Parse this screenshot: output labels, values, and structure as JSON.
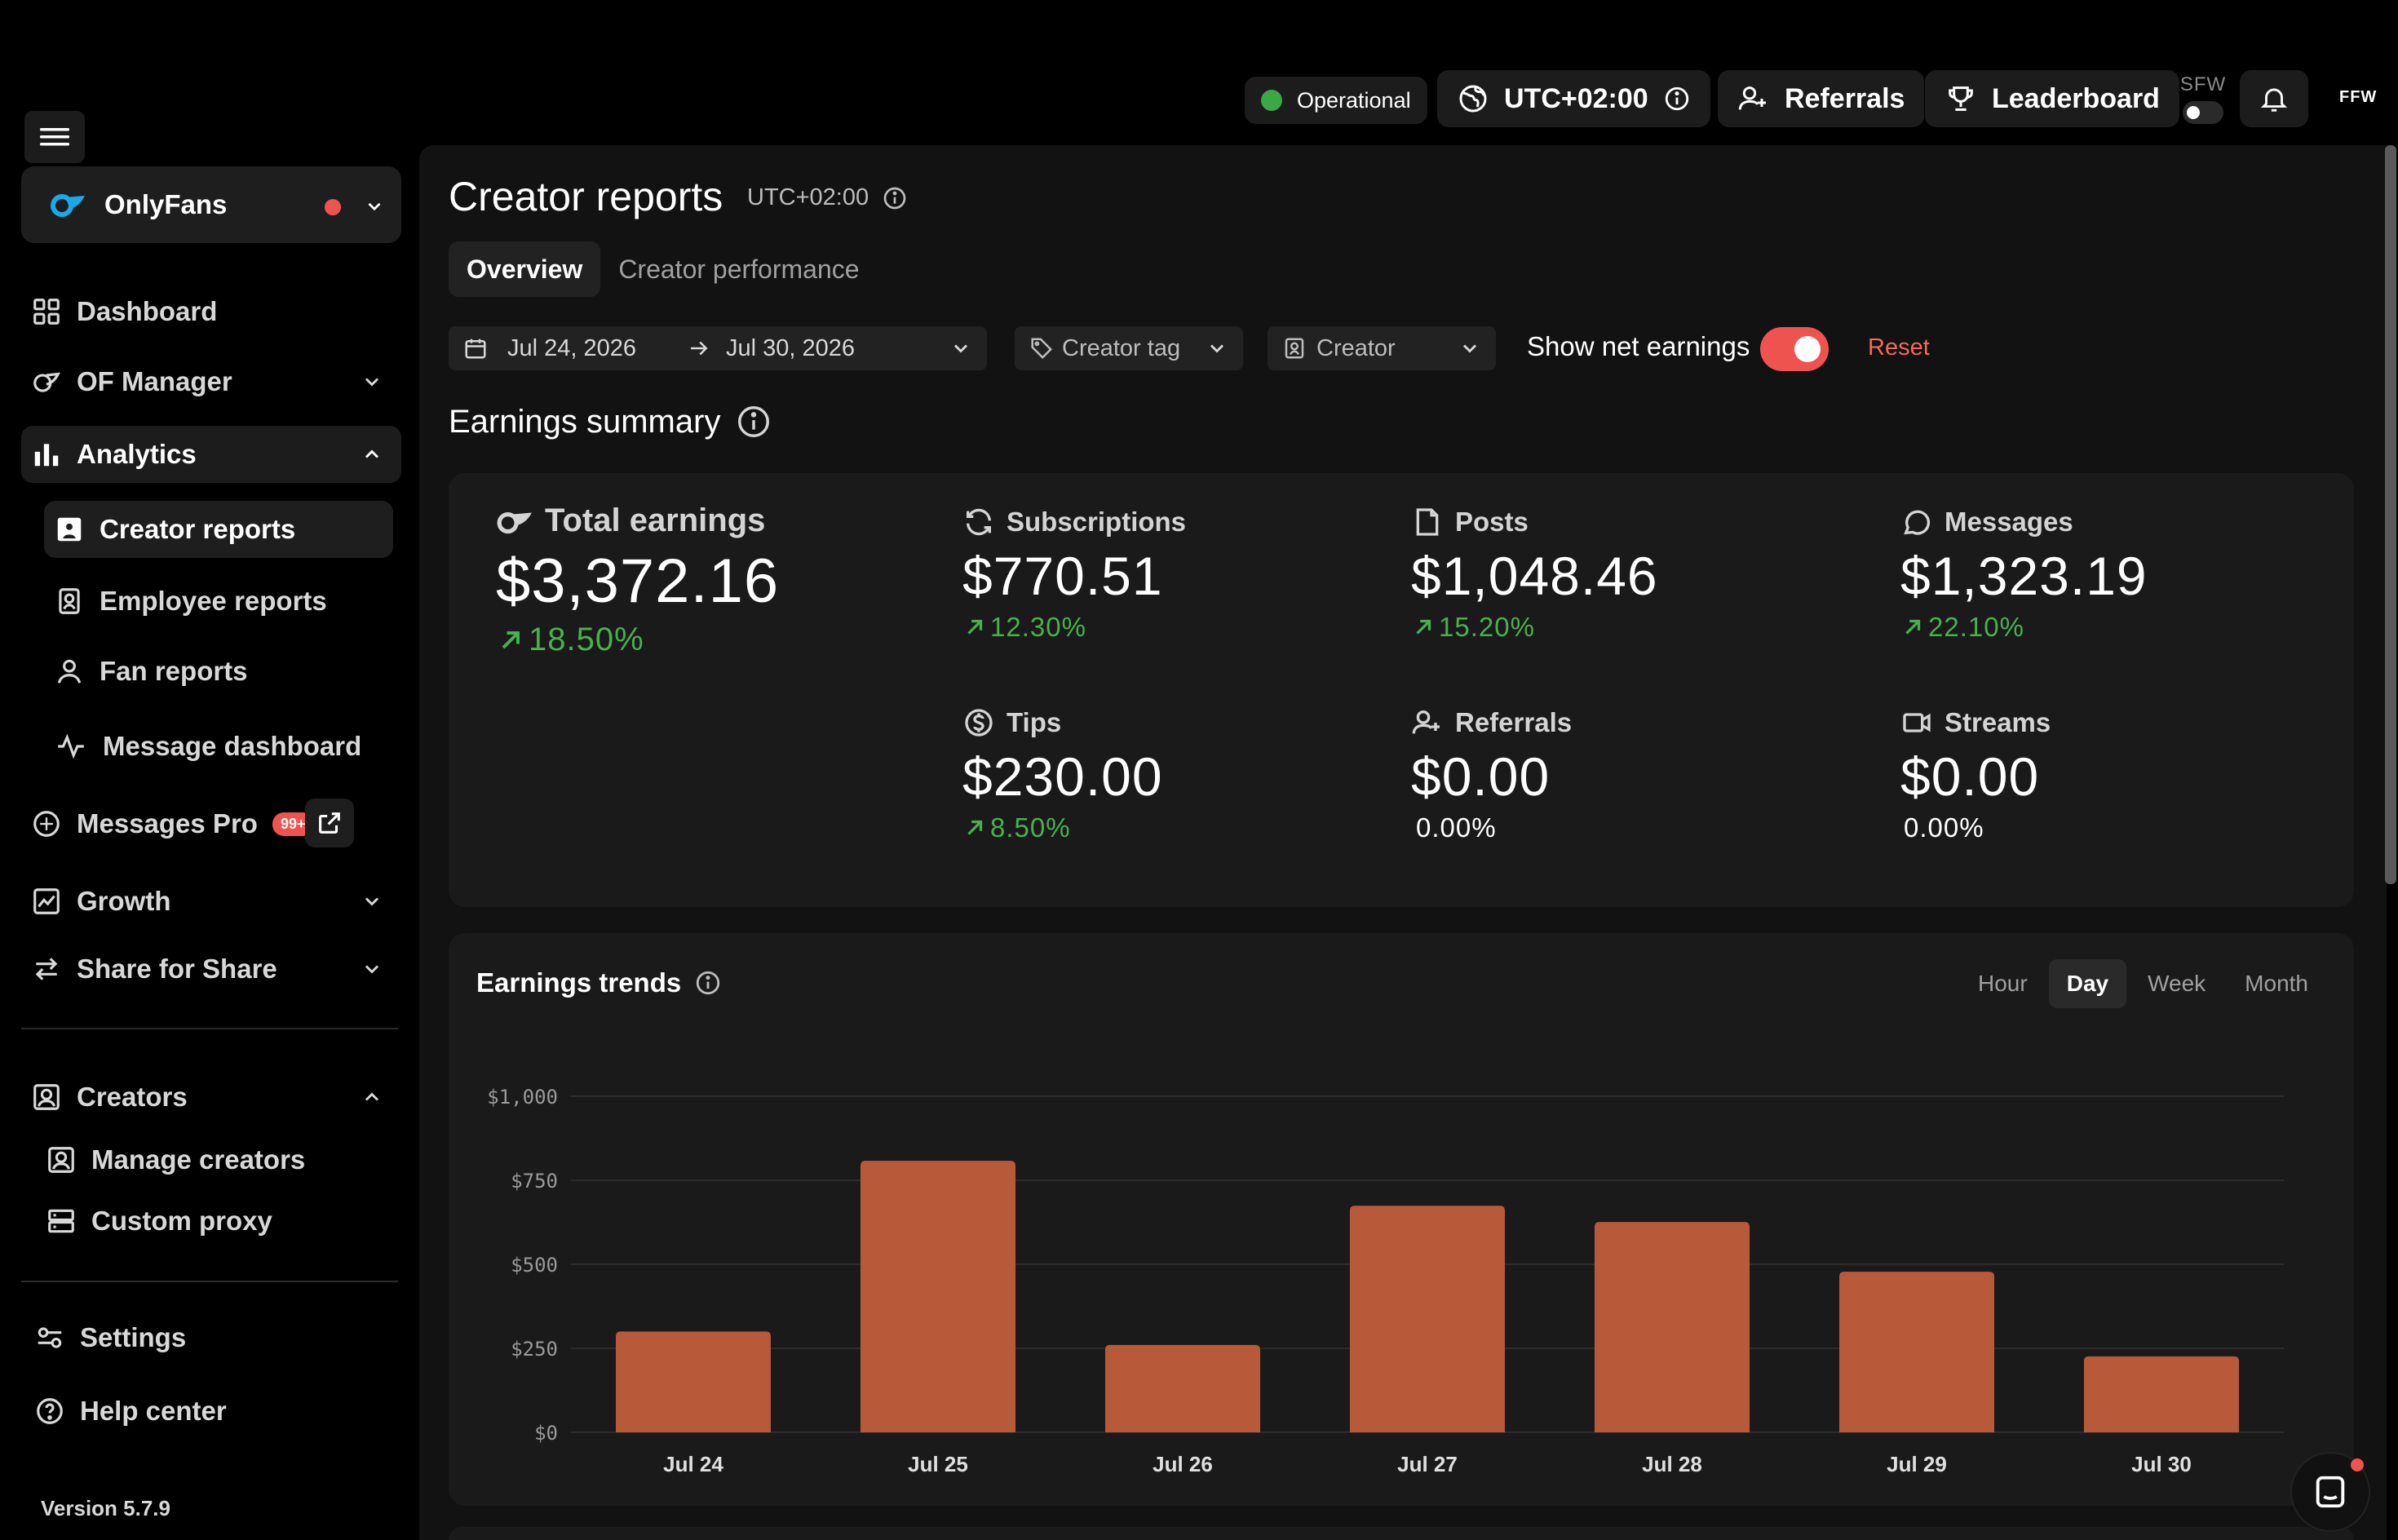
{
  "topbar": {
    "status": "Operational",
    "timezone": "UTC+02:00",
    "referrals": "Referrals",
    "leaderboard": "Leaderboard",
    "sfw": "SFW",
    "ffw": "FFW"
  },
  "sidebar": {
    "account": "OnlyFans",
    "items": {
      "dashboard": "Dashboard",
      "of_manager": "OF Manager",
      "analytics": "Analytics",
      "creator_reports": "Creator reports",
      "employee_reports": "Employee reports",
      "fan_reports": "Fan reports",
      "message_dashboard": "Message dashboard",
      "messages_pro": "Messages Pro",
      "messages_badge": "99+",
      "growth": "Growth",
      "share_for_share": "Share for Share",
      "creators": "Creators",
      "manage_creators": "Manage creators",
      "custom_proxy": "Custom proxy",
      "settings": "Settings",
      "help_center": "Help center"
    },
    "version": "Version 5.7.9"
  },
  "page": {
    "title": "Creator reports",
    "timezone": "UTC+02:00",
    "tabs": [
      "Overview",
      "Creator performance"
    ],
    "filters": {
      "date_from": "Jul 24, 2026",
      "date_to": "Jul 30, 2026",
      "creator_tag": "Creator tag",
      "creator": "Creator",
      "net_label": "Show net earnings",
      "net_enabled": true,
      "reset": "Reset"
    },
    "summary_title": "Earnings summary",
    "stats": {
      "total": {
        "label": "Total earnings",
        "value": "$3,372.16",
        "change": "18.50%"
      },
      "subscriptions": {
        "label": "Subscriptions",
        "value": "$770.51",
        "change": "12.30%"
      },
      "posts": {
        "label": "Posts",
        "value": "$1,048.46",
        "change": "15.20%"
      },
      "messages": {
        "label": "Messages",
        "value": "$1,323.19",
        "change": "22.10%"
      },
      "tips": {
        "label": "Tips",
        "value": "$230.00",
        "change": "8.50%"
      },
      "referrals": {
        "label": "Referrals",
        "value": "$0.00",
        "change": "0.00%"
      },
      "streams": {
        "label": "Streams",
        "value": "$0.00",
        "change": "0.00%"
      }
    },
    "trends": {
      "title": "Earnings trends",
      "granularity": [
        "Hour",
        "Day",
        "Week",
        "Month"
      ],
      "selected": "Day"
    }
  },
  "colors": {
    "accent": "#ef5350",
    "bar": "#b85a3a",
    "positive": "#49b050",
    "panel": "#1a1a1a"
  },
  "chart_data": {
    "type": "bar",
    "categories": [
      "Jul 24",
      "Jul 25",
      "Jul 26",
      "Jul 27",
      "Jul 28",
      "Jul 29",
      "Jul 30"
    ],
    "values": [
      300,
      808,
      260,
      674,
      626,
      478,
      226
    ],
    "ylim": [
      0,
      1000
    ],
    "yticks": [
      "$0",
      "$250",
      "$500",
      "$750",
      "$1,000"
    ],
    "ytick_values": [
      0,
      250,
      500,
      750,
      1000
    ],
    "grid": true
  }
}
